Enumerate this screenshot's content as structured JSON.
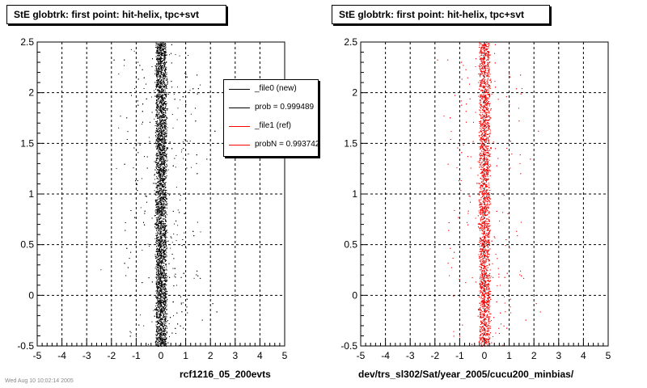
{
  "colors": {
    "new": "#000000",
    "ref": "#ff0000"
  },
  "panels": [
    {
      "title": "StE globtrk: first point: hit-helix, tpc+svt",
      "xlabel": "rcf1216_05_200evts"
    },
    {
      "title": "StE globtrk: first point: hit-helix, tpc+svt",
      "xlabel": "dev/trs_sl302/Sat/year_2005/cucu200_minbias/"
    }
  ],
  "legend": {
    "entries": [
      {
        "label": "_file0 (new)",
        "color": "#000000"
      },
      {
        "label": "prob = 0.999489",
        "color": "#000000"
      },
      {
        "label": "_file1 (ref)",
        "color": "#ff0000"
      },
      {
        "label": "probN = 0.993742",
        "color": "#ff0000"
      }
    ]
  },
  "footer": "Wed Aug 10 10:02:14 2005",
  "chart_data": [
    {
      "type": "scatter",
      "title": "StE globtrk: first point: hit-helix, tpc+svt",
      "xlabel": "rcf1216_05_200evts",
      "ylabel": "",
      "xlim": [
        -5,
        5
      ],
      "ylim": [
        -0.5,
        2.5
      ],
      "xticks": [
        "-5",
        "-4",
        "-3",
        "-2",
        "-1",
        "0",
        "1",
        "2",
        "3",
        "4",
        "5"
      ],
      "yticks": [
        "-0.5",
        "0",
        "0.5",
        "1",
        "1.5",
        "2",
        "2.5"
      ],
      "grid": true,
      "series": [
        {
          "name": "_file0 (new)",
          "color": "#000000",
          "x_center": 0.0,
          "core_halfwidth": 0.2,
          "tail_halfwidth": 1.5,
          "points": 7000
        }
      ]
    },
    {
      "type": "scatter",
      "title": "StE globtrk: first point: hit-helix, tpc+svt",
      "xlabel": "dev/trs_sl302/Sat/year_2005/cucu200_minbias/",
      "ylabel": "",
      "xlim": [
        -5,
        5
      ],
      "ylim": [
        -0.5,
        2.5
      ],
      "xticks": [
        "-5",
        "-4",
        "-3",
        "-2",
        "-1",
        "0",
        "1",
        "2",
        "3",
        "4",
        "5"
      ],
      "yticks": [
        "-0.5",
        "0",
        "0.5",
        "1",
        "1.5",
        "2",
        "2.5"
      ],
      "grid": true,
      "series": [
        {
          "name": "_file1 (ref)",
          "color": "#ff0000",
          "x_center": 0.0,
          "core_halfwidth": 0.2,
          "tail_halfwidth": 1.5,
          "points": 5000
        }
      ]
    }
  ]
}
